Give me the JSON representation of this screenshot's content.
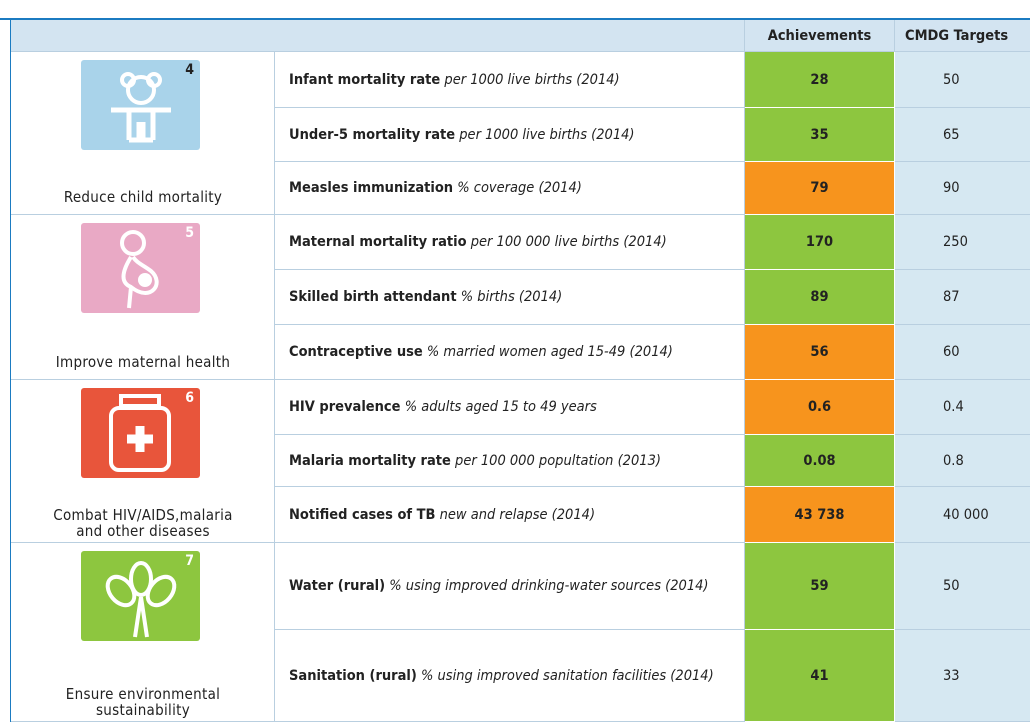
{
  "header": {
    "achievements": "Achievements",
    "targets": "CMDG Targets"
  },
  "goals": [
    {
      "number": "4",
      "label": [
        "Reduce child mortality"
      ],
      "color": "#a9d3ea",
      "indicators": [
        {
          "name": "Infant mortality rate",
          "detail": "per 1000 live births (2014)",
          "achievement": "28",
          "target": "50",
          "color": "#8dc63f"
        },
        {
          "name": "Under-5 mortality rate",
          "detail": "per 1000 live births (2014)",
          "achievement": "35",
          "target": "65",
          "color": "#8dc63f"
        },
        {
          "name": "Measles immunization",
          "detail": "% coverage (2014)",
          "achievement": "79",
          "target": "90",
          "color": "#f7941d"
        }
      ]
    },
    {
      "number": "5",
      "label": [
        "Improve maternal health"
      ],
      "color": "#e9a9c5",
      "indicators": [
        {
          "name": "Maternal mortality ratio",
          "detail": "per 100 000 live births (2014)",
          "achievement": "170",
          "target": "250",
          "color": "#8dc63f"
        },
        {
          "name": "Skilled birth attendant",
          "detail": "% births (2014)",
          "achievement": "89",
          "target": "87",
          "color": "#8dc63f"
        },
        {
          "name": "Contraceptive use",
          "detail": "% married women aged 15-49 (2014)",
          "achievement": "56",
          "target": "60",
          "color": "#f7941d"
        }
      ]
    },
    {
      "number": "6",
      "label": [
        "Combat HIV/AIDS,malaria",
        "and other diseases"
      ],
      "color": "#e8553b",
      "indicators": [
        {
          "name": "HIV prevalence",
          "detail": "% adults aged 15 to 49 years",
          "achievement": "0.6",
          "target": "0.4",
          "color": "#f7941d"
        },
        {
          "name": "Malaria mortality rate",
          "detail": "per 100 000 popultation (2013)",
          "achievement": "0.08",
          "target": "0.8",
          "color": "#8dc63f"
        },
        {
          "name": "Notified cases of TB",
          "detail": "new and relapse (2014)",
          "achievement": "43 738",
          "target": "40 000",
          "color": "#f7941d"
        }
      ]
    },
    {
      "number": "7",
      "label": [
        "Ensure environmental",
        "sustainability"
      ],
      "color": "#8dc63f",
      "indicators": [
        {
          "name": "Water (rural)",
          "detail": "% using improved drinking-water sources (2014)",
          "achievement": "59",
          "target": "50",
          "color": "#8dc63f"
        },
        {
          "name": "Sanitation (rural)",
          "detail": "% using improved sanitation facilities (2014)",
          "achievement": "41",
          "target": "33",
          "color": "#8dc63f"
        }
      ]
    }
  ]
}
